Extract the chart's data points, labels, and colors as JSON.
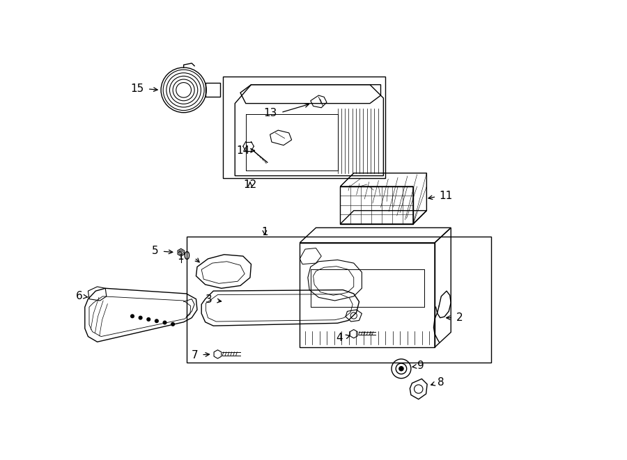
{
  "background_color": "#ffffff",
  "line_color": "#000000",
  "fig_width": 9.0,
  "fig_height": 6.61,
  "dpi": 100,
  "label_fontsize": 11,
  "lw": 1.0
}
